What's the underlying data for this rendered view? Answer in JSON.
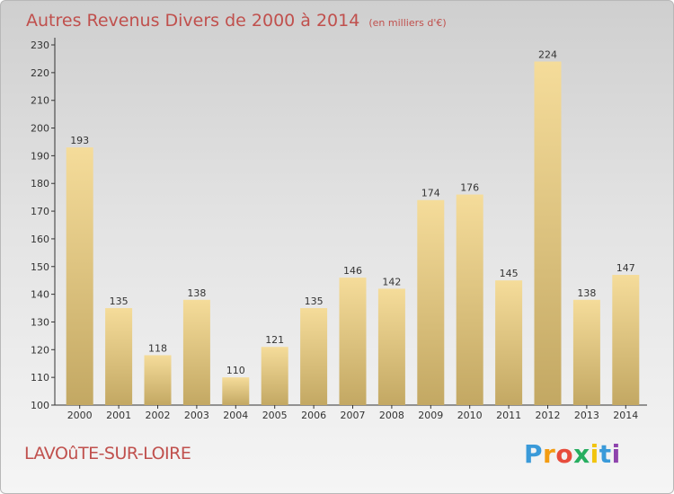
{
  "header": {
    "title": "Autres Revenus Divers de 2000 à 2014",
    "subtitle": "(en milliers d'€)"
  },
  "footer": {
    "place": "LAVOûTE-SUR-LOIRE",
    "brand_letters": [
      "P",
      "r",
      "o",
      "x",
      "i",
      "t",
      "i"
    ],
    "brand_colors": [
      "#3a9ad9",
      "#f39c12",
      "#e74c3c",
      "#27ae60",
      "#f1c40f",
      "#3a9ad9",
      "#8e44ad"
    ]
  },
  "colors": {
    "bar_light": "#f5dc9a",
    "bar_dark": "#c3a863",
    "title": "#c0504d"
  },
  "chart_data": {
    "type": "bar",
    "title": "Autres Revenus Divers de 2000 à 2014",
    "subtitle": "(en milliers d'€)",
    "categories": [
      "2000",
      "2001",
      "2002",
      "2003",
      "2004",
      "2005",
      "2006",
      "2007",
      "2008",
      "2009",
      "2010",
      "2011",
      "2012",
      "2013",
      "2014"
    ],
    "values": [
      193,
      135,
      118,
      138,
      110,
      121,
      135,
      146,
      142,
      174,
      176,
      145,
      224,
      138,
      147
    ],
    "yticks": [
      100,
      110,
      120,
      130,
      140,
      150,
      160,
      170,
      180,
      190,
      200,
      210,
      220,
      230
    ],
    "ylim": [
      100,
      230
    ],
    "grid": false,
    "legend": "none"
  }
}
